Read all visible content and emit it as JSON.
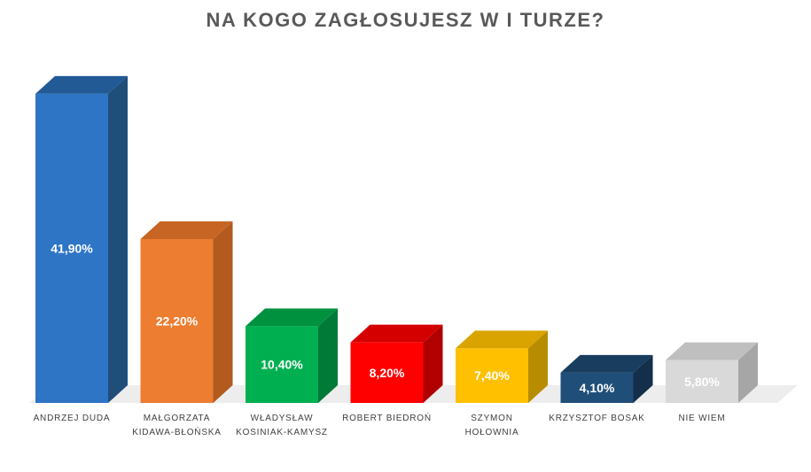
{
  "chart_data": {
    "type": "bar",
    "title": "NA KOGO ZAGŁOSUJESZ W I TURZE?",
    "categories": [
      [
        "ANDRZEJ DUDA"
      ],
      [
        "MAŁGORZATA",
        "KIDAWA-BŁOŃSKA"
      ],
      [
        "WŁADYSŁAW",
        "KOSINIAK-KAMYSZ"
      ],
      [
        "ROBERT BIEDROŃ"
      ],
      [
        "SZYMON",
        "HOŁOWNIA"
      ],
      [
        "KRZYSZTOF BOSAK"
      ],
      [
        "NIE WIEM"
      ]
    ],
    "values": [
      41.9,
      22.2,
      10.4,
      8.2,
      7.4,
      4.1,
      5.8
    ],
    "value_labels": [
      "41,90%",
      "22,20%",
      "10,40%",
      "8,20%",
      "7,40%",
      "4,10%",
      "5,80%"
    ],
    "colors": [
      "#2E75C6",
      "#ED7D31",
      "#00B050",
      "#FF0000",
      "#FFC000",
      "#1F4E79",
      "#D9D9D9"
    ],
    "side_colors": [
      "#1F4E79",
      "#B35A1F",
      "#007A37",
      "#B00000",
      "#B88C00",
      "#132F4A",
      "#A6A6A6"
    ],
    "top_colors": [
      "#225A96",
      "#C76524",
      "#00913F",
      "#D40000",
      "#D9A400",
      "#183D5E",
      "#BFBFBF"
    ],
    "ylim": [
      0,
      45
    ],
    "grid": false,
    "legend": "none"
  }
}
